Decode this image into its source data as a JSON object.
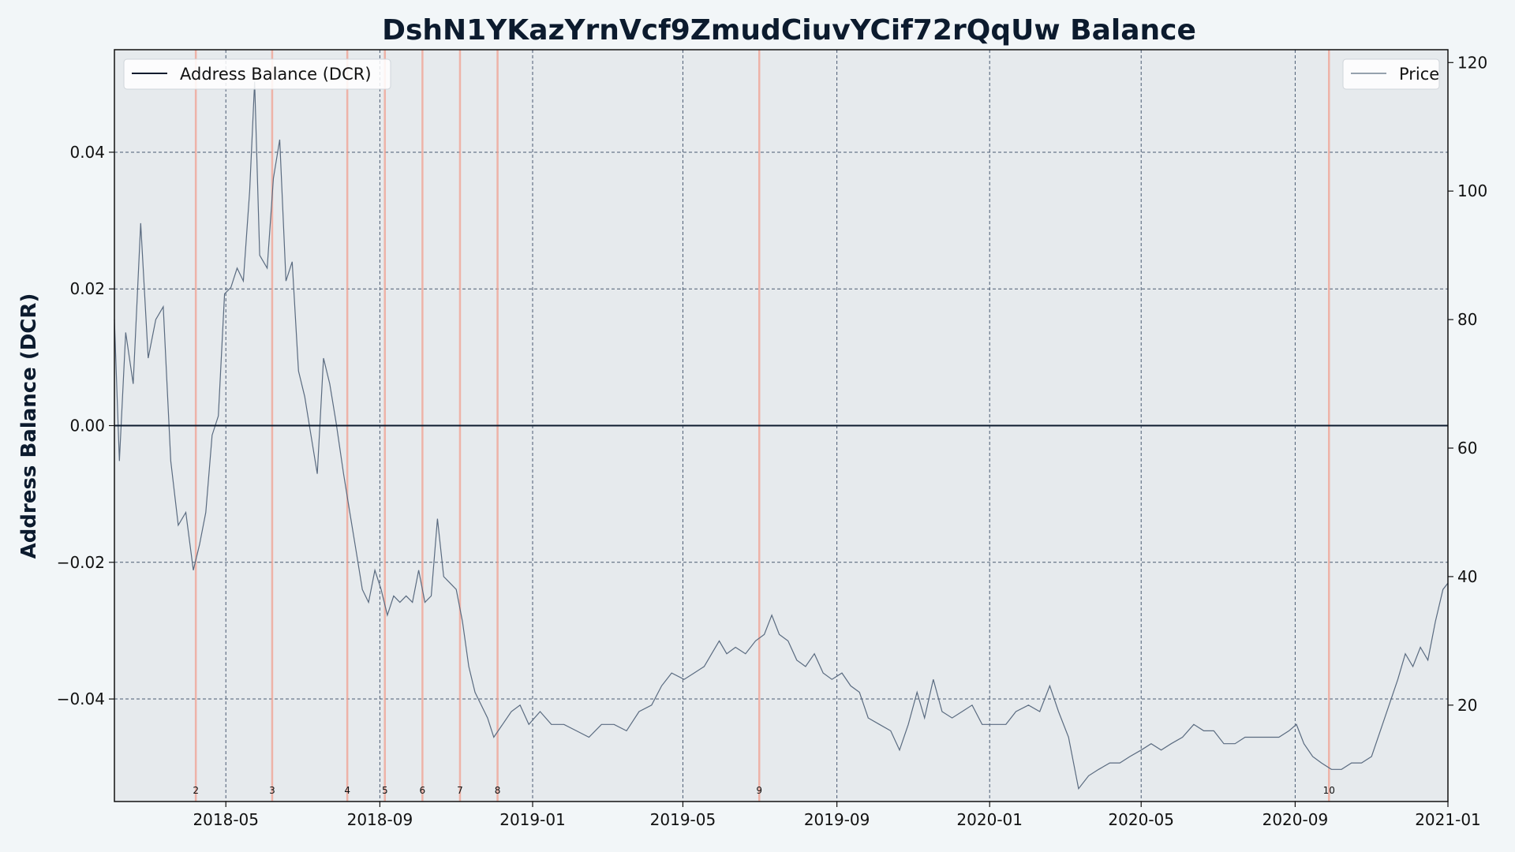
{
  "chart_data": {
    "type": "line",
    "title": "DshN1YKazYrnVcf9ZmudCiuvYCif72rQqUw Balance",
    "ylabel": "Address Balance (DCR)",
    "xlim": [
      "2018-02-01",
      "2021-01-01"
    ],
    "ylim_left": [
      -0.055,
      0.055
    ],
    "ylim_right": [
      5,
      122
    ],
    "x_ticks": [
      "2018-05",
      "2018-09",
      "2019-01",
      "2019-05",
      "2019-09",
      "2020-01",
      "2020-05",
      "2020-09",
      "2021-01"
    ],
    "y_ticks_left": [
      "0.04",
      "0.02",
      "0.00",
      "−0.02",
      "−0.04"
    ],
    "y_ticks_right": [
      "120",
      "100",
      "80",
      "60",
      "40",
      "20"
    ],
    "grid": true,
    "legend_left": {
      "position": "top-left",
      "label": "Address Balance (DCR)"
    },
    "legend_right": {
      "position": "top-right",
      "label": "Price"
    },
    "balance_series": {
      "name": "Address Balance (DCR)",
      "color": "#0c1b2e",
      "points": [
        [
          "2018-02-01",
          0.0
        ],
        [
          "2021-01-01",
          0.0
        ]
      ]
    },
    "price_series": {
      "name": "Price",
      "color": "#5a6b80",
      "points": [
        [
          "2018-02-01",
          80
        ],
        [
          "2018-02-05",
          58
        ],
        [
          "2018-02-10",
          78
        ],
        [
          "2018-02-16",
          70
        ],
        [
          "2018-02-22",
          95
        ],
        [
          "2018-02-28",
          74
        ],
        [
          "2018-03-06",
          80
        ],
        [
          "2018-03-12",
          82
        ],
        [
          "2018-03-18",
          58
        ],
        [
          "2018-03-24",
          48
        ],
        [
          "2018-03-30",
          50
        ],
        [
          "2018-04-05",
          41
        ],
        [
          "2018-04-10",
          45
        ],
        [
          "2018-04-15",
          50
        ],
        [
          "2018-04-20",
          62
        ],
        [
          "2018-04-25",
          65
        ],
        [
          "2018-04-30",
          84
        ],
        [
          "2018-05-05",
          85
        ],
        [
          "2018-05-10",
          88
        ],
        [
          "2018-05-15",
          86
        ],
        [
          "2018-05-20",
          100
        ],
        [
          "2018-05-24",
          117
        ],
        [
          "2018-05-28",
          90
        ],
        [
          "2018-06-03",
          88
        ],
        [
          "2018-06-08",
          102
        ],
        [
          "2018-06-13",
          108
        ],
        [
          "2018-06-18",
          86
        ],
        [
          "2018-06-23",
          89
        ],
        [
          "2018-06-28",
          72
        ],
        [
          "2018-07-03",
          68
        ],
        [
          "2018-07-08",
          62
        ],
        [
          "2018-07-13",
          56
        ],
        [
          "2018-07-18",
          74
        ],
        [
          "2018-07-23",
          70
        ],
        [
          "2018-07-28",
          64
        ],
        [
          "2018-08-03",
          56
        ],
        [
          "2018-08-08",
          50
        ],
        [
          "2018-08-13",
          44
        ],
        [
          "2018-08-18",
          38
        ],
        [
          "2018-08-23",
          36
        ],
        [
          "2018-08-28",
          41
        ],
        [
          "2018-09-02",
          38
        ],
        [
          "2018-09-07",
          34
        ],
        [
          "2018-09-12",
          37
        ],
        [
          "2018-09-17",
          36
        ],
        [
          "2018-09-22",
          37
        ],
        [
          "2018-09-27",
          36
        ],
        [
          "2018-10-02",
          41
        ],
        [
          "2018-10-07",
          36
        ],
        [
          "2018-10-12",
          37
        ],
        [
          "2018-10-17",
          49
        ],
        [
          "2018-10-22",
          40
        ],
        [
          "2018-10-27",
          39
        ],
        [
          "2018-11-01",
          38
        ],
        [
          "2018-11-06",
          33
        ],
        [
          "2018-11-11",
          26
        ],
        [
          "2018-11-16",
          22
        ],
        [
          "2018-11-21",
          20
        ],
        [
          "2018-11-26",
          18
        ],
        [
          "2018-12-01",
          15
        ],
        [
          "2018-12-08",
          17
        ],
        [
          "2018-12-15",
          19
        ],
        [
          "2018-12-22",
          20
        ],
        [
          "2018-12-29",
          17
        ],
        [
          "2019-01-07",
          19
        ],
        [
          "2019-01-16",
          17
        ],
        [
          "2019-01-26",
          17
        ],
        [
          "2019-02-05",
          16
        ],
        [
          "2019-02-15",
          15
        ],
        [
          "2019-02-25",
          17
        ],
        [
          "2019-03-07",
          17
        ],
        [
          "2019-03-17",
          16
        ],
        [
          "2019-03-27",
          19
        ],
        [
          "2019-04-06",
          20
        ],
        [
          "2019-04-14",
          23
        ],
        [
          "2019-04-22",
          25
        ],
        [
          "2019-05-02",
          24
        ],
        [
          "2019-05-10",
          25
        ],
        [
          "2019-05-18",
          26
        ],
        [
          "2019-05-24",
          28
        ],
        [
          "2019-05-30",
          30
        ],
        [
          "2019-06-05",
          28
        ],
        [
          "2019-06-12",
          29
        ],
        [
          "2019-06-20",
          28
        ],
        [
          "2019-06-28",
          30
        ],
        [
          "2019-07-05",
          31
        ],
        [
          "2019-07-11",
          34
        ],
        [
          "2019-07-17",
          31
        ],
        [
          "2019-07-24",
          30
        ],
        [
          "2019-07-31",
          27
        ],
        [
          "2019-08-07",
          26
        ],
        [
          "2019-08-14",
          28
        ],
        [
          "2019-08-21",
          25
        ],
        [
          "2019-08-28",
          24
        ],
        [
          "2019-09-05",
          25
        ],
        [
          "2019-09-12",
          23
        ],
        [
          "2019-09-19",
          22
        ],
        [
          "2019-09-26",
          18
        ],
        [
          "2019-10-05",
          17
        ],
        [
          "2019-10-14",
          16
        ],
        [
          "2019-10-21",
          13
        ],
        [
          "2019-10-28",
          17
        ],
        [
          "2019-11-04",
          22
        ],
        [
          "2019-11-10",
          18
        ],
        [
          "2019-11-17",
          24
        ],
        [
          "2019-11-24",
          19
        ],
        [
          "2019-12-02",
          18
        ],
        [
          "2019-12-10",
          19
        ],
        [
          "2019-12-18",
          20
        ],
        [
          "2019-12-26",
          17
        ],
        [
          "2020-01-05",
          17
        ],
        [
          "2020-01-14",
          17
        ],
        [
          "2020-01-22",
          19
        ],
        [
          "2020-02-01",
          20
        ],
        [
          "2020-02-10",
          19
        ],
        [
          "2020-02-18",
          23
        ],
        [
          "2020-02-25",
          19
        ],
        [
          "2020-03-04",
          15
        ],
        [
          "2020-03-12",
          7
        ],
        [
          "2020-03-20",
          9
        ],
        [
          "2020-03-28",
          10
        ],
        [
          "2020-04-06",
          11
        ],
        [
          "2020-04-14",
          11
        ],
        [
          "2020-04-22",
          12
        ],
        [
          "2020-05-01",
          13
        ],
        [
          "2020-05-09",
          14
        ],
        [
          "2020-05-17",
          13
        ],
        [
          "2020-05-25",
          14
        ],
        [
          "2020-06-03",
          15
        ],
        [
          "2020-06-12",
          17
        ],
        [
          "2020-06-20",
          16
        ],
        [
          "2020-06-28",
          16
        ],
        [
          "2020-07-06",
          14
        ],
        [
          "2020-07-15",
          14
        ],
        [
          "2020-07-23",
          15
        ],
        [
          "2020-08-01",
          15
        ],
        [
          "2020-08-10",
          15
        ],
        [
          "2020-08-19",
          15
        ],
        [
          "2020-08-27",
          16
        ],
        [
          "2020-09-02",
          17
        ],
        [
          "2020-09-08",
          14
        ],
        [
          "2020-09-15",
          12
        ],
        [
          "2020-09-22",
          11
        ],
        [
          "2020-09-30",
          10
        ],
        [
          "2020-10-08",
          10
        ],
        [
          "2020-10-16",
          11
        ],
        [
          "2020-10-24",
          11
        ],
        [
          "2020-11-01",
          12
        ],
        [
          "2020-11-08",
          16
        ],
        [
          "2020-11-15",
          20
        ],
        [
          "2020-11-22",
          24
        ],
        [
          "2020-11-28",
          28
        ],
        [
          "2020-12-04",
          26
        ],
        [
          "2020-12-10",
          29
        ],
        [
          "2020-12-16",
          27
        ],
        [
          "2020-12-22",
          33
        ],
        [
          "2020-12-28",
          38
        ],
        [
          "2021-01-01",
          39
        ]
      ]
    },
    "event_lines": {
      "color": "#f0a090",
      "events": [
        {
          "label": "2",
          "date": "2018-04-07"
        },
        {
          "label": "3",
          "date": "2018-06-07"
        },
        {
          "label": "4",
          "date": "2018-08-06"
        },
        {
          "label": "5",
          "date": "2018-09-05"
        },
        {
          "label": "6",
          "date": "2018-10-05"
        },
        {
          "label": "7",
          "date": "2018-11-04"
        },
        {
          "label": "8",
          "date": "2018-12-04"
        },
        {
          "label": "9",
          "date": "2019-07-01"
        },
        {
          "label": "10",
          "date": "2020-09-28"
        }
      ]
    }
  }
}
